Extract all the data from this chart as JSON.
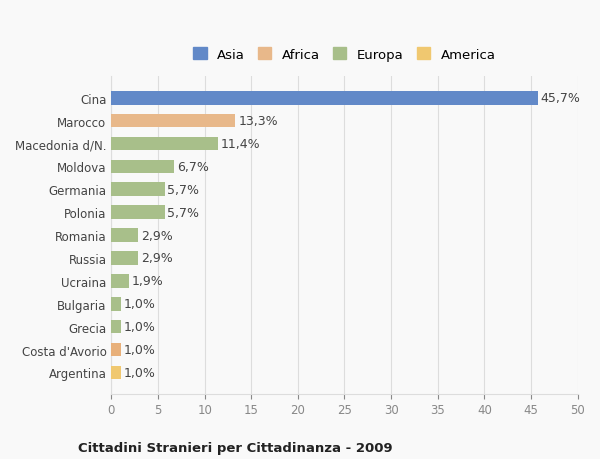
{
  "categories": [
    "Cina",
    "Marocco",
    "Macedonia d/N.",
    "Moldova",
    "Germania",
    "Polonia",
    "Romania",
    "Russia",
    "Ucraina",
    "Bulgaria",
    "Grecia",
    "Costa d'Avorio",
    "Argentina"
  ],
  "values": [
    45.7,
    13.3,
    11.4,
    6.7,
    5.7,
    5.7,
    2.9,
    2.9,
    1.9,
    1.0,
    1.0,
    1.0,
    1.0
  ],
  "labels": [
    "45,7%",
    "13,3%",
    "11,4%",
    "6,7%",
    "5,7%",
    "5,7%",
    "2,9%",
    "2,9%",
    "1,9%",
    "1,0%",
    "1,0%",
    "1,0%",
    "1,0%"
  ],
  "colors": [
    "#6289c8",
    "#e8b88a",
    "#a8bf8a",
    "#a8bf8a",
    "#a8bf8a",
    "#a8bf8a",
    "#a8bf8a",
    "#a8bf8a",
    "#a8bf8a",
    "#a8bf8a",
    "#a8bf8a",
    "#e8b07a",
    "#f0c870"
  ],
  "legend_labels": [
    "Asia",
    "Africa",
    "Europa",
    "America"
  ],
  "legend_colors": [
    "#6289c8",
    "#e8b88a",
    "#a8bf8a",
    "#f0c870"
  ],
  "xlim": [
    0,
    50
  ],
  "xticks": [
    0,
    5,
    10,
    15,
    20,
    25,
    30,
    35,
    40,
    45,
    50
  ],
  "title": "Cittadini Stranieri per Cittadinanza - 2009",
  "background_color": "#f9f9f9",
  "bar_height": 0.6,
  "grid_color": "#dddddd",
  "label_fontsize": 9,
  "tick_fontsize": 8.5
}
